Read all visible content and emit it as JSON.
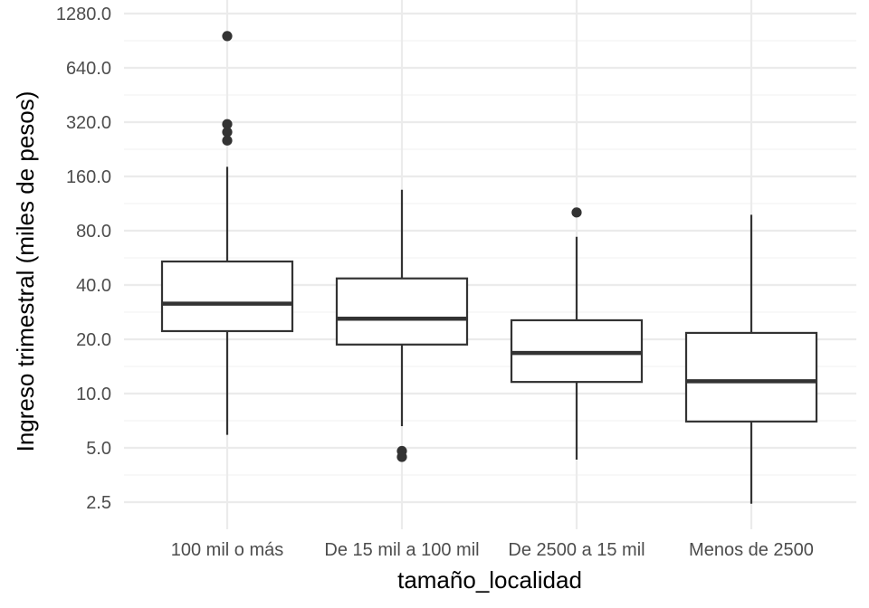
{
  "chart_data": {
    "type": "boxplot",
    "xlabel": "tamaño_localidad",
    "ylabel": "Ingreso trimestral (miles de pesos)",
    "y_scale": "log2",
    "ylim": [
      1.75,
      1280
    ],
    "y_ticks": [
      2.5,
      5,
      10,
      20,
      40,
      80,
      160,
      320,
      640,
      1280
    ],
    "y_tick_labels": [
      "2.5",
      "5.0",
      "10.0",
      "20.0",
      "40.0",
      "80.0",
      "160.0",
      "320.0",
      "640.0",
      "1280.0"
    ],
    "grid": true,
    "categories": [
      "100 mil o más",
      "De 15 mil a 100 mil",
      "De 2500 a 15 mil",
      "Menos de 2500"
    ],
    "boxes": [
      {
        "category": "100 mil o más",
        "whisker_low": 5.9,
        "q1": 22.2,
        "median": 31.5,
        "q3": 54.0,
        "whisker_high": 181,
        "outliers": [
          960,
          312,
          282,
          253
        ]
      },
      {
        "category": "De 15 mil a 100 mil",
        "whisker_low": 6.6,
        "q1": 18.7,
        "median": 26.0,
        "q3": 43.5,
        "whisker_high": 135,
        "outliers": [
          4.8,
          4.45
        ]
      },
      {
        "category": "De 2500 a 15 mil",
        "whisker_low": 4.3,
        "q1": 11.6,
        "median": 16.8,
        "q3": 25.5,
        "whisker_high": 74,
        "outliers": [
          101
        ]
      },
      {
        "category": "Menos de 2500",
        "whisker_low": 2.45,
        "q1": 7.0,
        "median": 11.7,
        "q3": 21.7,
        "whisker_high": 98,
        "outliers": []
      }
    ]
  }
}
